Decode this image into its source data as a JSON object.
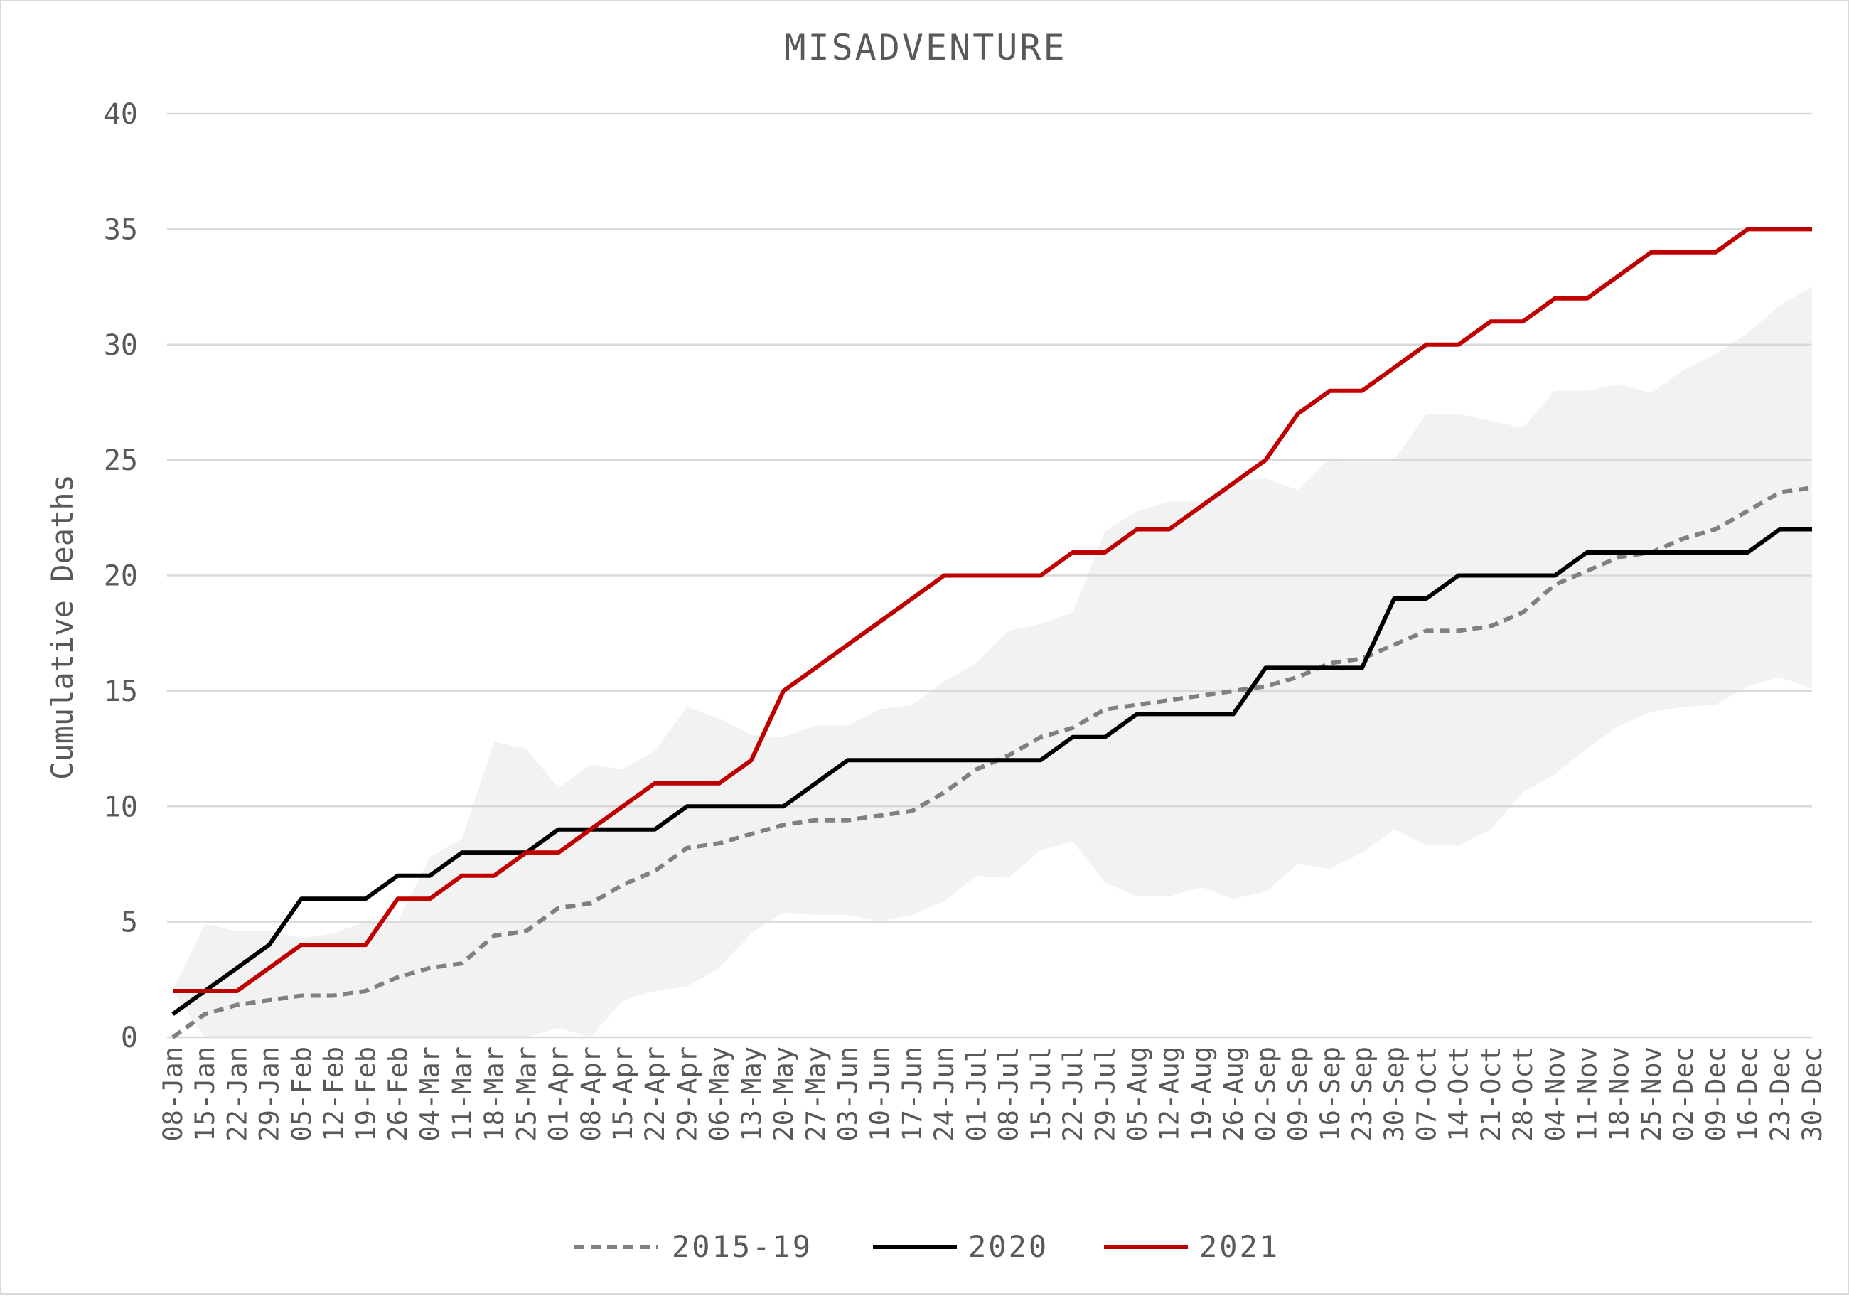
{
  "chart_data": {
    "type": "line",
    "title": "MISADVENTURE",
    "xlabel": "",
    "ylabel": "Cumulative Deaths",
    "ylim": [
      0,
      40
    ],
    "yticks": [
      0,
      5,
      10,
      15,
      20,
      25,
      30,
      35,
      40
    ],
    "grid": true,
    "legend_position": "bottom",
    "categories": [
      "08-Jan",
      "15-Jan",
      "22-Jan",
      "29-Jan",
      "05-Feb",
      "12-Feb",
      "19-Feb",
      "26-Feb",
      "04-Mar",
      "11-Mar",
      "18-Mar",
      "25-Mar",
      "01-Apr",
      "08-Apr",
      "15-Apr",
      "22-Apr",
      "29-Apr",
      "06-May",
      "13-May",
      "20-May",
      "27-May",
      "03-Jun",
      "10-Jun",
      "17-Jun",
      "24-Jun",
      "01-Jul",
      "08-Jul",
      "15-Jul",
      "22-Jul",
      "29-Jul",
      "05-Aug",
      "12-Aug",
      "19-Aug",
      "26-Aug",
      "02-Sep",
      "09-Sep",
      "16-Sep",
      "23-Sep",
      "30-Sep",
      "07-Oct",
      "14-Oct",
      "21-Oct",
      "28-Oct",
      "04-Nov",
      "11-Nov",
      "18-Nov",
      "25-Nov",
      "02-Dec",
      "09-Dec",
      "16-Dec",
      "23-Dec",
      "30-Dec"
    ],
    "series": [
      {
        "name": "2015-19",
        "color": "#808080",
        "style": "dashed",
        "values": [
          0,
          1,
          1.4,
          1.6,
          1.8,
          1.8,
          2,
          2.6,
          3,
          3.2,
          4.4,
          4.6,
          5.6,
          5.8,
          6.6,
          7.2,
          8.2,
          8.4,
          8.8,
          9.2,
          9.4,
          9.4,
          9.6,
          9.8,
          10.6,
          11.6,
          12.2,
          13,
          13.4,
          14.2,
          14.4,
          14.6,
          14.8,
          15,
          15.2,
          15.6,
          16.2,
          16.4,
          17,
          17.6,
          17.6,
          17.8,
          18.4,
          19.6,
          20.2,
          20.8,
          21,
          21.6,
          22,
          22.8,
          23.6,
          23.8
        ]
      },
      {
        "name": "2020",
        "color": "#000000",
        "style": "solid",
        "values": [
          1,
          2,
          3,
          4,
          6,
          6,
          6,
          7,
          7,
          8,
          8,
          8,
          9,
          9,
          9,
          9,
          10,
          10,
          10,
          10,
          11,
          12,
          12,
          12,
          12,
          12,
          12,
          12,
          13,
          13,
          14,
          14,
          14,
          14,
          16,
          16,
          16,
          16,
          19,
          19,
          20,
          20,
          20,
          20,
          21,
          21,
          21,
          21,
          21,
          21,
          22,
          22
        ]
      },
      {
        "name": "2021",
        "color": "#c00000",
        "style": "solid",
        "values": [
          2,
          2,
          2,
          3,
          4,
          4,
          4,
          6,
          6,
          7,
          7,
          8,
          8,
          9,
          10,
          11,
          11,
          11,
          12,
          15,
          16,
          17,
          18,
          19,
          20,
          20,
          20,
          20,
          21,
          21,
          22,
          22,
          23,
          24,
          25,
          27,
          28,
          28,
          29,
          30,
          30,
          31,
          31,
          32,
          32,
          33,
          34,
          34,
          34,
          35,
          35,
          35
        ]
      }
    ],
    "range_band": {
      "color": "#f2f2f2",
      "upper": [
        2,
        4.9,
        4.6,
        4.6,
        4.3,
        4.5,
        5,
        5,
        7.8,
        8.6,
        12.8,
        12.5,
        10.8,
        11.8,
        11.6,
        12.4,
        14.3,
        13.8,
        13.1,
        13,
        13.5,
        13.5,
        14.2,
        14.4,
        15.4,
        16.2,
        17.6,
        17.9,
        18.4,
        21.9,
        22.8,
        23.2,
        23.2,
        24.1,
        24.2,
        23.7,
        25.1,
        25,
        25,
        27,
        27,
        26.7,
        26.4,
        28,
        28,
        28.3,
        27.9,
        28.9,
        29.6,
        30.5,
        31.7,
        32.5
      ],
      "lower": [
        2,
        0,
        0,
        0,
        0,
        0,
        0,
        0,
        0,
        0,
        0,
        0,
        0.4,
        0,
        1.6,
        2,
        2.2,
        3,
        4.5,
        5.4,
        5.3,
        5.3,
        5,
        5.3,
        5.9,
        7,
        6.9,
        8.1,
        8.5,
        6.7,
        6.1,
        6.1,
        6.5,
        6,
        6.3,
        7.5,
        7.3,
        8,
        9,
        8.3,
        8.3,
        9,
        10.6,
        11.4,
        12.5,
        13.5,
        14.1,
        14.3,
        14.4,
        15.2,
        15.6,
        15.1
      ]
    }
  }
}
